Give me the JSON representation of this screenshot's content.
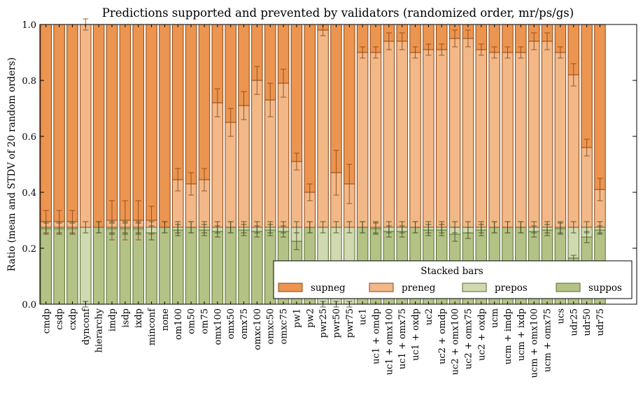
{
  "chart_data": {
    "type": "bar",
    "stacked": true,
    "title": "Predictions supported and prevented by validators (randomized order, mr/ps/gs)",
    "xlabel": "",
    "ylabel": "Ratio (mean and STDV of 20 random orders)",
    "ylim": [
      0.0,
      1.0
    ],
    "yticks": [
      "0.0",
      "0.2",
      "0.4",
      "0.6",
      "0.8",
      "1.0"
    ],
    "grid": false,
    "categories": [
      "cmdp",
      "csdp",
      "cxdp",
      "dynconf",
      "hierarchy",
      "imdp",
      "isdp",
      "ixdp",
      "minconf",
      "none",
      "om100",
      "om50",
      "om75",
      "omx100",
      "omx50",
      "omx75",
      "omxc100",
      "omxc50",
      "omxc75",
      "pw1",
      "pw2",
      "pwr25",
      "pwr50",
      "pwr75",
      "uc1",
      "uc1 + omdp",
      "uc1 + omx100",
      "uc1 + omx75",
      "uc1 + oxdp",
      "uc2",
      "uc2 + omdp",
      "uc2 + omx100",
      "uc2 + omx75",
      "uc2 + oxdp",
      "ucm",
      "ucm + imdp",
      "ucm + ixdp",
      "ucm + omx100",
      "ucm + omx75",
      "ucs",
      "udr25",
      "udr50",
      "udr75"
    ],
    "series": [
      {
        "name": "suppos",
        "color": "#b5c286",
        "edge": "#556b2f",
        "values": [
          0.27,
          0.27,
          0.27,
          0.0,
          0.275,
          0.27,
          0.27,
          0.27,
          0.255,
          0.275,
          0.265,
          0.275,
          0.265,
          0.26,
          0.275,
          0.265,
          0.26,
          0.265,
          0.26,
          0.225,
          0.275,
          0.0,
          0.0,
          0.0,
          0.275,
          0.27,
          0.26,
          0.26,
          0.275,
          0.265,
          0.265,
          0.25,
          0.255,
          0.265,
          0.275,
          0.275,
          0.275,
          0.26,
          0.265,
          0.27,
          0.165,
          0.24,
          0.265
        ],
        "stdv": [
          0.02,
          0.02,
          0.02,
          0.01,
          0.02,
          0.02,
          0.02,
          0.02,
          0.025,
          0.02,
          0.02,
          0.02,
          0.02,
          0.02,
          0.02,
          0.02,
          0.02,
          0.02,
          0.02,
          0.03,
          0.02,
          0.01,
          0.01,
          0.01,
          0.02,
          0.02,
          0.02,
          0.02,
          0.02,
          0.02,
          0.02,
          0.025,
          0.02,
          0.02,
          0.02,
          0.02,
          0.02,
          0.02,
          0.02,
          0.02,
          0.01,
          0.02,
          0.015
        ]
      },
      {
        "name": "prepos",
        "color": "#d1d9b0",
        "edge": "#556b2f",
        "values": [
          0.005,
          0.005,
          0.005,
          0.275,
          0.0,
          0.005,
          0.005,
          0.005,
          0.02,
          0.0,
          0.01,
          0.0,
          0.01,
          0.015,
          0.0,
          0.01,
          0.015,
          0.01,
          0.015,
          0.05,
          0.0,
          0.275,
          0.275,
          0.275,
          0.0,
          0.005,
          0.015,
          0.015,
          0.0,
          0.01,
          0.01,
          0.025,
          0.02,
          0.01,
          0.0,
          0.0,
          0.0,
          0.015,
          0.01,
          0.005,
          0.11,
          0.035,
          0.01
        ],
        "stdv": [
          0.02,
          0.02,
          0.02,
          0.02,
          0.02,
          0.02,
          0.02,
          0.02,
          0.02,
          0.02,
          0.02,
          0.02,
          0.02,
          0.02,
          0.02,
          0.02,
          0.02,
          0.02,
          0.02,
          0.02,
          0.02,
          0.02,
          0.02,
          0.02,
          0.02,
          0.02,
          0.02,
          0.02,
          0.02,
          0.02,
          0.02,
          0.02,
          0.02,
          0.02,
          0.02,
          0.02,
          0.02,
          0.02,
          0.02,
          0.02,
          0.02,
          0.02,
          0.02
        ]
      },
      {
        "name": "preneg",
        "color": "#f2b888",
        "edge": "#8b4513",
        "values": [
          0.02,
          0.02,
          0.02,
          0.725,
          0.0,
          0.025,
          0.025,
          0.025,
          0.025,
          0.0,
          0.17,
          0.155,
          0.17,
          0.445,
          0.375,
          0.435,
          0.525,
          0.455,
          0.515,
          0.235,
          0.125,
          0.705,
          0.195,
          0.155,
          0.625,
          0.625,
          0.665,
          0.665,
          0.625,
          0.635,
          0.635,
          0.675,
          0.675,
          0.635,
          0.625,
          0.625,
          0.625,
          0.665,
          0.665,
          0.625,
          0.545,
          0.285,
          0.135
        ],
        "stdv": [
          0.04,
          0.04,
          0.04,
          0.02,
          0.0,
          0.07,
          0.07,
          0.07,
          0.05,
          0.0,
          0.04,
          0.04,
          0.04,
          0.05,
          0.05,
          0.05,
          0.05,
          0.06,
          0.05,
          0.03,
          0.03,
          0.02,
          0.08,
          0.07,
          0.02,
          0.02,
          0.03,
          0.03,
          0.02,
          0.02,
          0.02,
          0.03,
          0.03,
          0.02,
          0.02,
          0.02,
          0.02,
          0.03,
          0.03,
          0.02,
          0.04,
          0.03,
          0.04
        ]
      },
      {
        "name": "supneg",
        "color": "#ec9550",
        "edge": "#8b4513",
        "values": [
          0.705,
          0.705,
          0.705,
          0.0,
          0.725,
          0.7,
          0.7,
          0.7,
          0.7,
          0.725,
          0.555,
          0.57,
          0.555,
          0.28,
          0.35,
          0.29,
          0.2,
          0.27,
          0.21,
          0.49,
          0.6,
          0.02,
          0.53,
          0.57,
          0.1,
          0.1,
          0.06,
          0.06,
          0.1,
          0.09,
          0.09,
          0.05,
          0.05,
          0.09,
          0.1,
          0.1,
          0.1,
          0.06,
          0.06,
          0.1,
          0.18,
          0.44,
          0.59
        ]
      }
    ],
    "legend": {
      "title": "Stacked bars",
      "placement": "lower-right",
      "entries": [
        "supneg",
        "preneg",
        "prepos",
        "suppos"
      ]
    }
  }
}
